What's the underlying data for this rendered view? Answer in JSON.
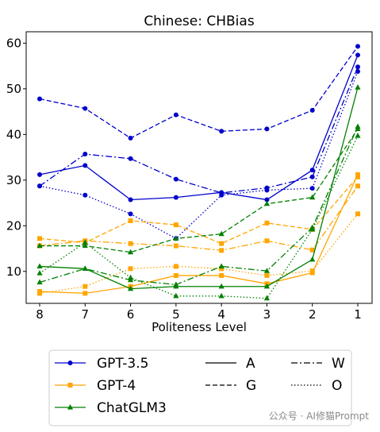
{
  "chart_data": {
    "type": "line",
    "title": "Chinese: CHBias",
    "xlabel": "Politeness Level",
    "ylabel": "",
    "x": [
      "8",
      "7",
      "6",
      "5",
      "4",
      "3",
      "2",
      "1"
    ],
    "yticks": [
      "10",
      "20",
      "30",
      "40",
      "50",
      "60"
    ],
    "ylim": [
      3,
      62.5
    ],
    "grid": false,
    "legend_position": "bottom",
    "legend_models": [
      {
        "name": "GPT-3.5",
        "color": "#0000cc",
        "marker": "circle"
      },
      {
        "name": "GPT-4",
        "color": "#ffa500",
        "marker": "square"
      },
      {
        "name": "ChatGLM3",
        "color": "#008000",
        "marker": "triangle"
      }
    ],
    "legend_styles": [
      {
        "name": "A",
        "dash": "solid"
      },
      {
        "name": "G",
        "dash": "dashed"
      },
      {
        "name": "W",
        "dash": "dashdot"
      },
      {
        "name": "O",
        "dash": "dotted"
      }
    ],
    "series": [
      {
        "model": "GPT-3.5",
        "style": "A",
        "values": [
          31.2,
          33.2,
          25.7,
          26.2,
          27.3,
          25.7,
          32.2,
          57.4
        ]
      },
      {
        "model": "GPT-3.5",
        "style": "G",
        "values": [
          47.8,
          45.7,
          39.2,
          44.3,
          40.7,
          41.2,
          45.3,
          59.3
        ]
      },
      {
        "model": "GPT-3.5",
        "style": "W",
        "values": [
          28.7,
          35.7,
          34.7,
          30.2,
          27.2,
          28.3,
          30.7,
          54.8
        ]
      },
      {
        "model": "GPT-3.5",
        "style": "O",
        "values": [
          28.7,
          26.7,
          22.6,
          17.2,
          26.7,
          27.8,
          28.2,
          53.8
        ]
      },
      {
        "model": "GPT-4",
        "style": "A",
        "values": [
          5.6,
          5.2,
          6.7,
          9.1,
          9.1,
          7.3,
          9.7,
          31.2
        ]
      },
      {
        "model": "GPT-4",
        "style": "G",
        "values": [
          17.2,
          16.3,
          21.1,
          20.2,
          16.1,
          20.6,
          19.2,
          30.7
        ]
      },
      {
        "model": "GPT-4",
        "style": "W",
        "values": [
          15.6,
          16.7,
          16.1,
          15.6,
          14.6,
          16.7,
          14.7,
          28.7
        ]
      },
      {
        "model": "GPT-4",
        "style": "O",
        "values": [
          5.2,
          6.7,
          10.6,
          11.1,
          10.6,
          9.1,
          10.1,
          22.6
        ]
      },
      {
        "model": "ChatGLM3",
        "style": "A",
        "values": [
          11.1,
          10.6,
          6.2,
          6.7,
          6.7,
          6.7,
          12.6,
          50.3
        ]
      },
      {
        "model": "ChatGLM3",
        "style": "G",
        "values": [
          15.6,
          15.6,
          14.2,
          17.2,
          18.2,
          24.8,
          26.2,
          41.2
        ]
      },
      {
        "model": "ChatGLM3",
        "style": "W",
        "values": [
          7.6,
          10.6,
          8.1,
          7.1,
          11.1,
          10.1,
          19.6,
          41.7
        ]
      },
      {
        "model": "ChatGLM3",
        "style": "O",
        "values": [
          9.6,
          16.3,
          8.6,
          4.6,
          4.6,
          4.1,
          19.2,
          39.7
        ]
      }
    ]
  },
  "watermark": "公众号 · AI修猫Prompt"
}
